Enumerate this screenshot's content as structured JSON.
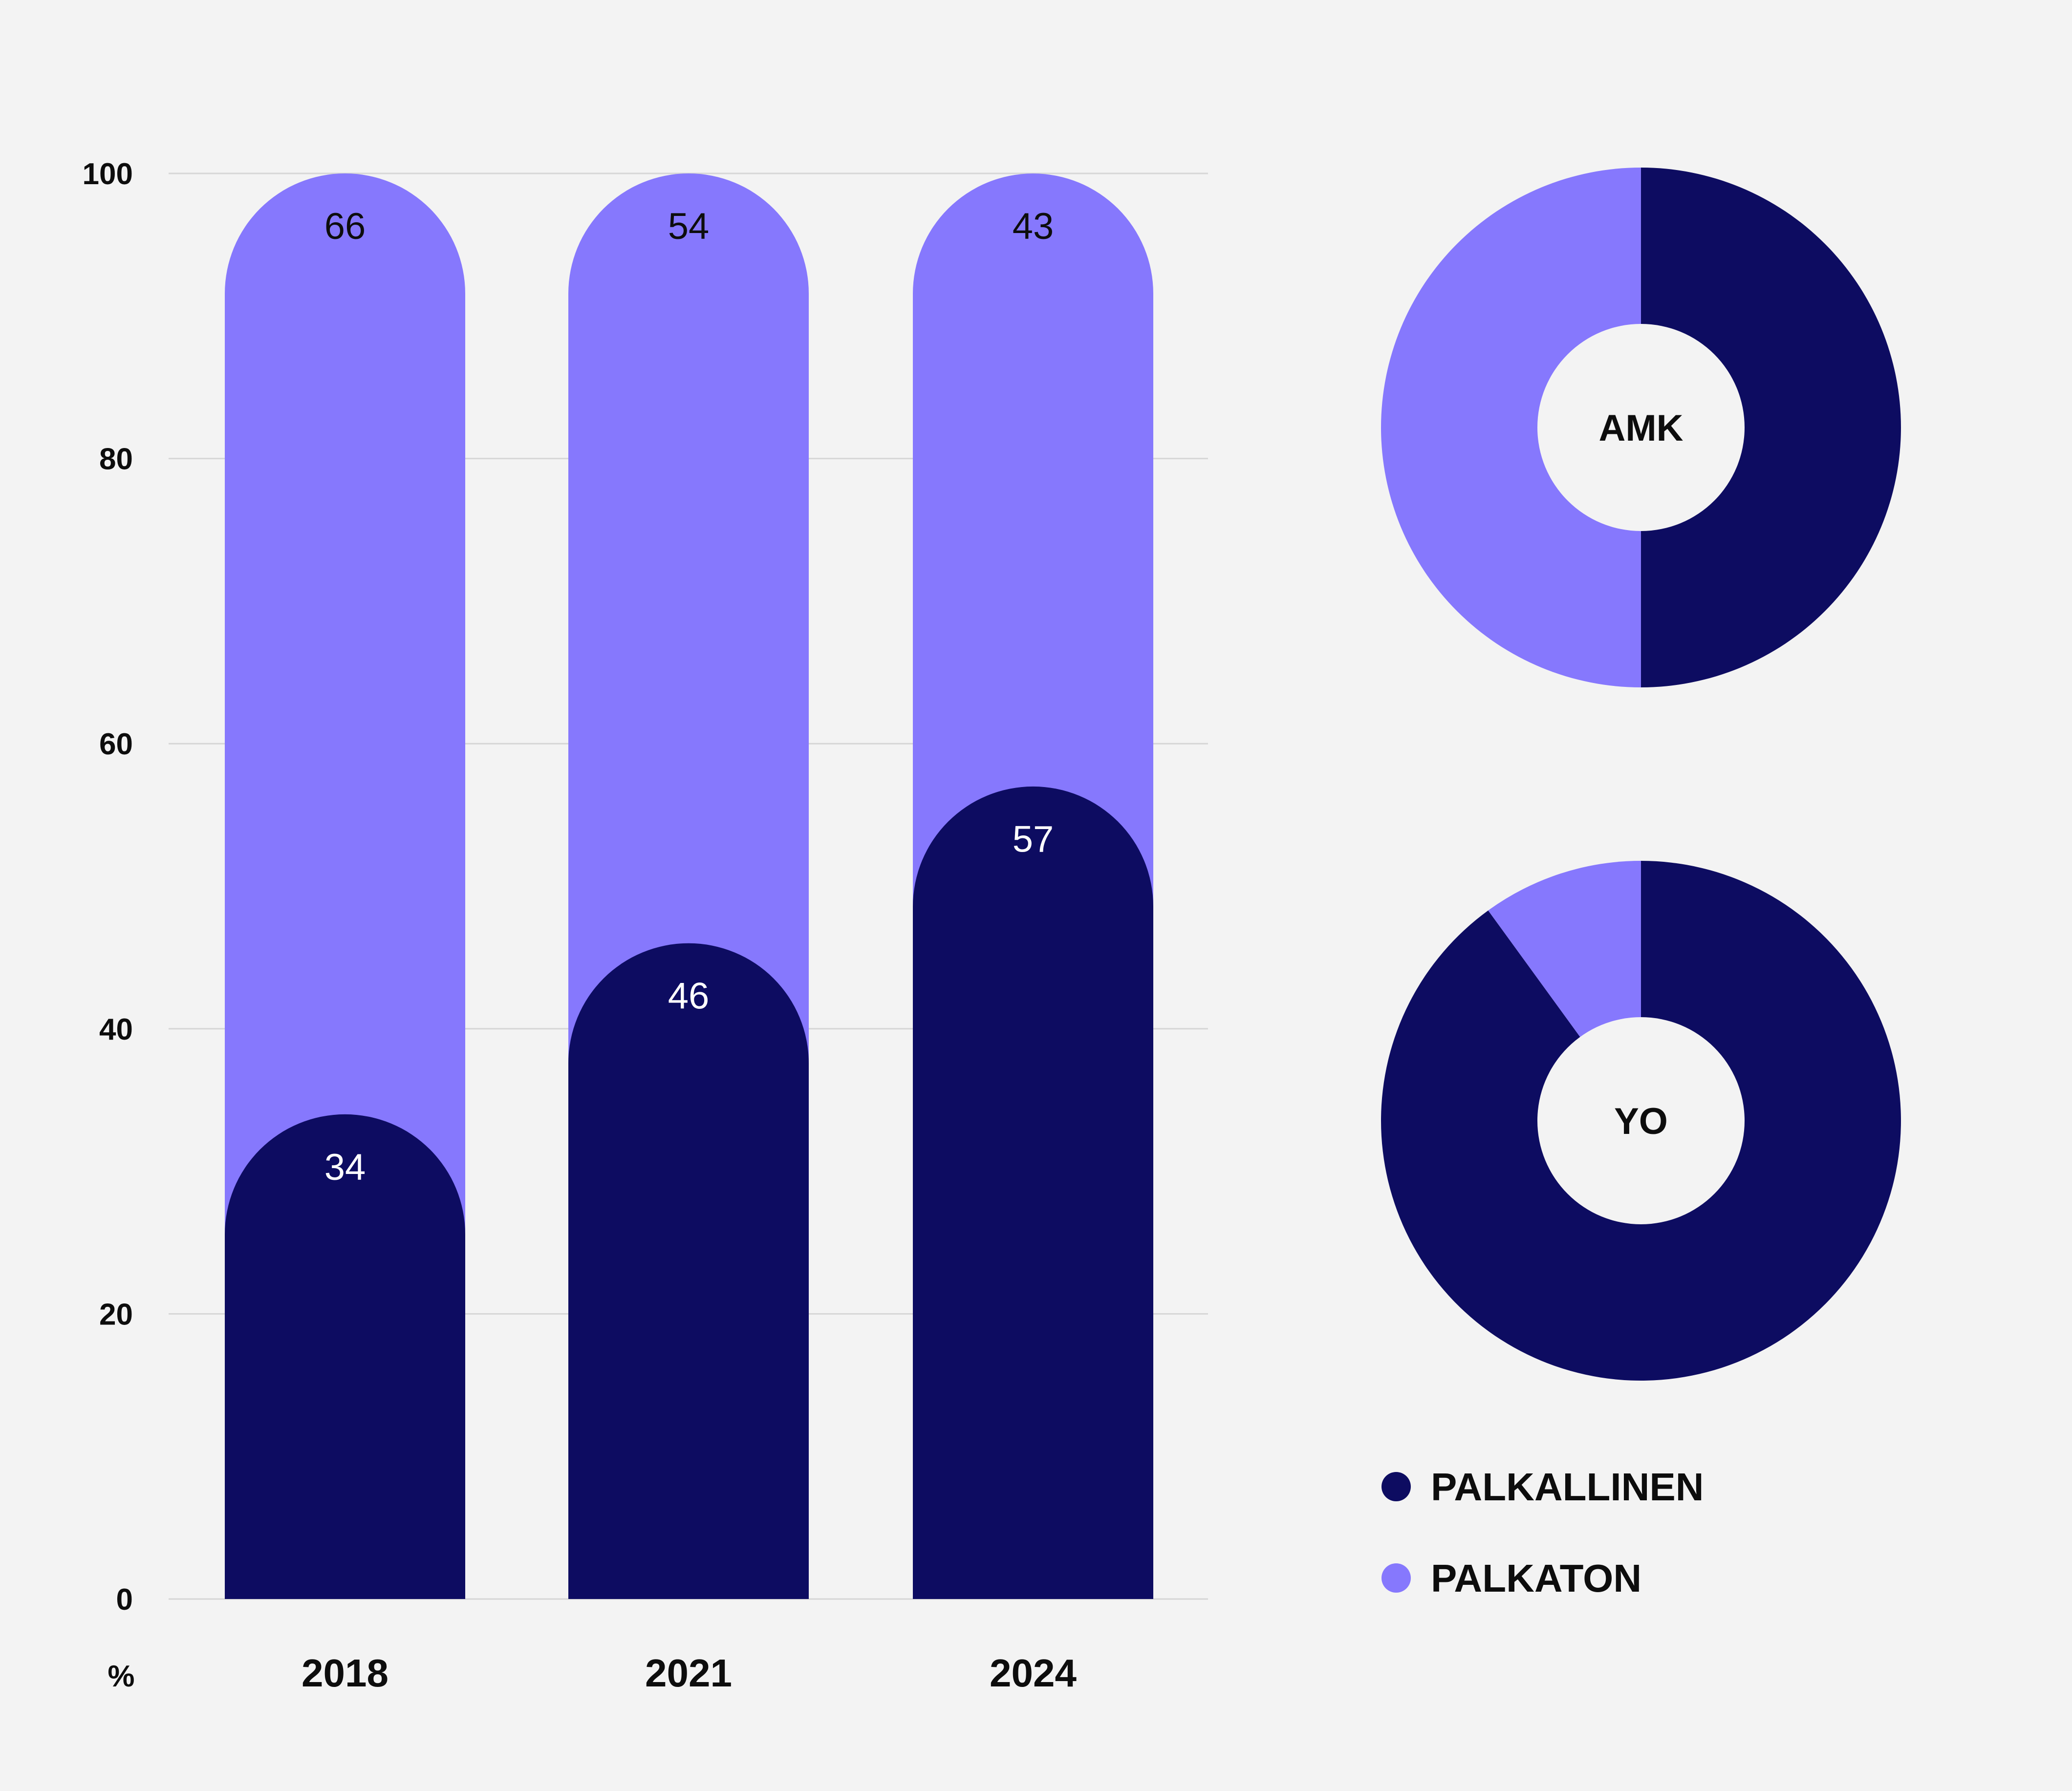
{
  "colors": {
    "background": "#f3f3f3",
    "palkallinen": "#0d0c61",
    "palkaton": "#8678fd",
    "grid": "#d6d6d6",
    "text": "#0d0d0d",
    "donut_hole": "#f3f3f3",
    "label_on_dark": "#ffffff"
  },
  "chart_data": [
    {
      "type": "bar",
      "stacked": true,
      "categories": [
        "2018",
        "2021",
        "2024"
      ],
      "series": [
        {
          "name": "PALKALLINEN",
          "values": [
            34,
            46,
            57
          ]
        },
        {
          "name": "PALKATON",
          "values": [
            66,
            54,
            43
          ]
        }
      ],
      "yticks": [
        "0",
        "20",
        "40",
        "60",
        "80",
        "100"
      ],
      "ylim": [
        0,
        100
      ],
      "y_unit_label": "%",
      "grid": true
    },
    {
      "type": "pie",
      "donut": true,
      "center_label": "AMK",
      "slices": [
        {
          "name": "PALKALLINEN",
          "value": 50
        },
        {
          "name": "PALKATON",
          "value": 50
        }
      ]
    },
    {
      "type": "pie",
      "donut": true,
      "center_label": "YO",
      "slices": [
        {
          "name": "PALKALLINEN",
          "value": 90
        },
        {
          "name": "PALKATON",
          "value": 10
        }
      ]
    }
  ],
  "legend": {
    "items": [
      {
        "label": "PALKALLINEN",
        "color": "#0d0c61"
      },
      {
        "label": "PALKATON",
        "color": "#8678fd"
      }
    ],
    "placement": "bottom-right"
  }
}
